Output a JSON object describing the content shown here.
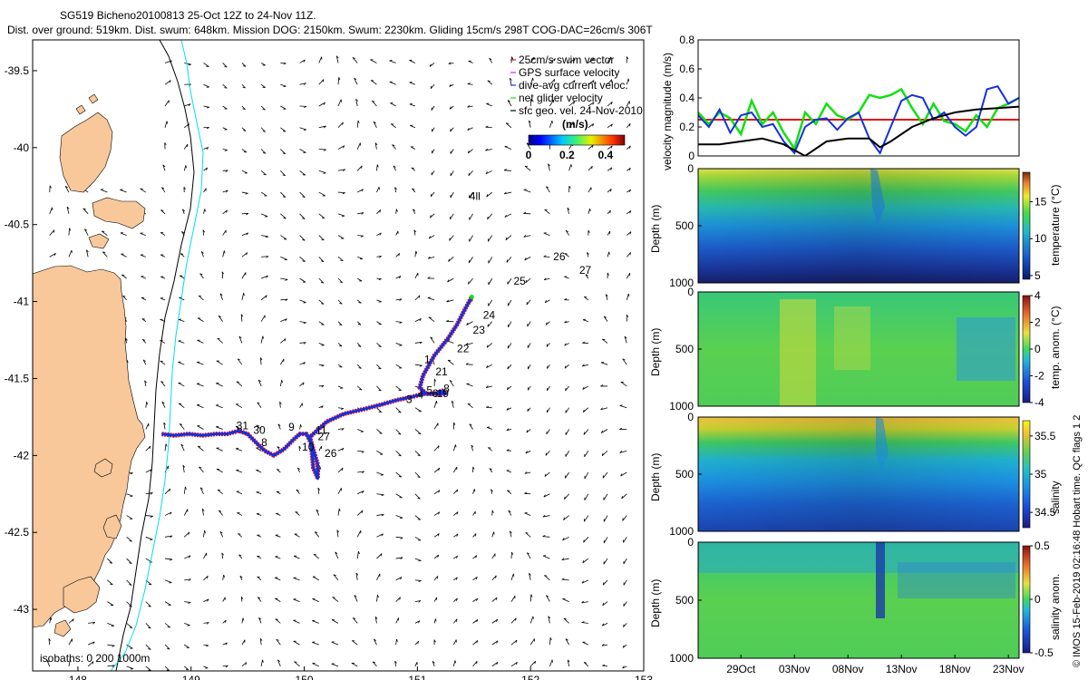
{
  "title": {
    "line1": "SG519 Bicheno20100813 25-Oct 12Z to 24-Nov 11Z.",
    "line2": "Dist. over ground: 519km. Dist. swum: 648km. Mission DOG: 2150km. Swum: 2230km. Gliding 15cm/s 298T COG-DAC=26cm/s 306T"
  },
  "side_note": "© IMOS 15-Feb-2019 02:16:48 Hobart time. QC flags 1  2",
  "colors": {
    "land": "#f8c89a",
    "track_red": "#e01010",
    "track_blue": "#1530dd",
    "cyan_isobath": "#00e0f0",
    "green": "#10e010",
    "black": "#000000"
  },
  "chart_data": [
    {
      "id": "map",
      "type": "scatter",
      "xlim": [
        147.6,
        153
      ],
      "ylim": [
        -43.4,
        -39.3
      ],
      "xticks": [
        148,
        149,
        150,
        151,
        152,
        153
      ],
      "xtick_labels": [
        "148",
        "149",
        "150",
        "151",
        "152",
        "153"
      ],
      "yticks": [
        -39.5,
        -40,
        -40.5,
        -41,
        -41.5,
        -42,
        -42.5,
        -43
      ],
      "ytick_labels": [
        "-39.5",
        "-40",
        "-40.5",
        "-41",
        "-41.5",
        "-42",
        "-42.5",
        "-43"
      ],
      "isobaths_label": "isobaths: 0    200   1000m",
      "legend": [
        {
          "label": "25cm/s swim vector",
          "color": "#e01010",
          "marker": "arrow"
        },
        {
          "label": "GPS surface velocity",
          "color": "#e020e0",
          "marker": "line"
        },
        {
          "label": "dive-avg current veloc.",
          "color": "#1530dd",
          "marker": "arrow"
        },
        {
          "label": "net glider velocity",
          "color": "#10e010",
          "marker": "line"
        },
        {
          "label": "sfc geo. vel. 24-Nov-2010",
          "color": "#000000",
          "marker": "arrow"
        }
      ],
      "colorbar": {
        "label": "(m/s)",
        "ticks": [
          0,
          0.2,
          0.4
        ],
        "tick_labels": [
          "0",
          "0.2",
          "0.4"
        ],
        "range": [
          0,
          0.5
        ]
      },
      "track": [
        [
          148.74,
          -41.86
        ],
        [
          148.85,
          -41.87
        ],
        [
          148.98,
          -41.86
        ],
        [
          149.1,
          -41.87
        ],
        [
          149.22,
          -41.86
        ],
        [
          149.32,
          -41.86
        ],
        [
          149.42,
          -41.84
        ],
        [
          149.5,
          -41.86
        ],
        [
          149.58,
          -41.92
        ],
        [
          149.65,
          -41.97
        ],
        [
          149.73,
          -42.0
        ],
        [
          149.82,
          -41.96
        ],
        [
          149.9,
          -41.9
        ],
        [
          149.96,
          -41.86
        ],
        [
          150.02,
          -41.86
        ],
        [
          150.06,
          -41.92
        ],
        [
          150.07,
          -42.0
        ],
        [
          150.08,
          -42.08
        ],
        [
          150.12,
          -42.15
        ],
        [
          150.12,
          -42.06
        ],
        [
          150.08,
          -41.96
        ],
        [
          150.05,
          -41.88
        ],
        [
          150.2,
          -41.78
        ],
        [
          150.35,
          -41.73
        ],
        [
          150.52,
          -41.7
        ],
        [
          150.68,
          -41.67
        ],
        [
          150.82,
          -41.64
        ],
        [
          150.95,
          -41.62
        ],
        [
          151.05,
          -41.6
        ],
        [
          151.15,
          -41.6
        ],
        [
          151.22,
          -41.58
        ],
        [
          151.25,
          -41.6
        ],
        [
          151.08,
          -41.6
        ],
        [
          151.02,
          -41.56
        ],
        [
          151.05,
          -41.48
        ],
        [
          151.15,
          -41.35
        ],
        [
          151.27,
          -41.24
        ],
        [
          151.35,
          -41.15
        ],
        [
          151.42,
          -41.05
        ],
        [
          151.48,
          -40.97
        ]
      ],
      "track_labels": [
        {
          "text": "31",
          "lon": 149.4,
          "lat": -41.83
        },
        {
          "text": "30",
          "lon": 149.55,
          "lat": -41.86
        },
        {
          "text": "8",
          "lon": 149.62,
          "lat": -41.94
        },
        {
          "text": "9",
          "lon": 149.86,
          "lat": -41.84
        },
        {
          "text": "11",
          "lon": 150.1,
          "lat": -41.86
        },
        {
          "text": "27",
          "lon": 150.12,
          "lat": -41.9
        },
        {
          "text": "10",
          "lon": 149.98,
          "lat": -41.97
        },
        {
          "text": "26",
          "lon": 150.18,
          "lat": -42.01
        },
        {
          "text": "3",
          "lon": 150.9,
          "lat": -41.66
        },
        {
          "text": "4",
          "lon": 151.0,
          "lat": -41.63
        },
        {
          "text": "5",
          "lon": 151.08,
          "lat": -41.6
        },
        {
          "text": "6",
          "lon": 151.13,
          "lat": -41.62
        },
        {
          "text": "19",
          "lon": 151.17,
          "lat": -41.62
        },
        {
          "text": "8",
          "lon": 151.23,
          "lat": -41.59
        },
        {
          "text": "21",
          "lon": 151.16,
          "lat": -41.48
        },
        {
          "text": "1",
          "lon": 151.06,
          "lat": -41.4
        },
        {
          "text": "22",
          "lon": 151.35,
          "lat": -41.33
        },
        {
          "text": "23",
          "lon": 151.49,
          "lat": -41.21
        },
        {
          "text": "24",
          "lon": 151.58,
          "lat": -41.11
        },
        {
          "text": "25",
          "lon": 151.85,
          "lat": -40.89
        },
        {
          "text": "26",
          "lon": 152.2,
          "lat": -40.73
        },
        {
          "text": "27",
          "lon": 152.43,
          "lat": -40.82
        },
        {
          "text": "4ll",
          "lon": 151.46,
          "lat": -40.34
        }
      ]
    },
    {
      "id": "velocity",
      "type": "line",
      "ylabel": "velocity magnitude (m/s)",
      "xlim": [
        0,
        30
      ],
      "ylim": [
        0,
        0.8
      ],
      "yticks": [
        0,
        0.2,
        0.4,
        0.6,
        0.8
      ],
      "ytick_labels": [
        "0",
        "0.2",
        "0.4",
        "0.6",
        "0.8"
      ],
      "series": [
        {
          "name": "swim 25cm/s",
          "color": "#e01010",
          "x": [
            0,
            30
          ],
          "values": [
            0.25,
            0.25
          ]
        },
        {
          "name": "net glider velocity",
          "color": "#10e010",
          "x": [
            0,
            1,
            2,
            3,
            4,
            5,
            6,
            7,
            8,
            9,
            10,
            11,
            12,
            13,
            14,
            15,
            16,
            17,
            18,
            19,
            20,
            21,
            22,
            23,
            24,
            25,
            26,
            27,
            28,
            29,
            30
          ],
          "values": [
            0.3,
            0.22,
            0.3,
            0.26,
            0.15,
            0.38,
            0.22,
            0.3,
            0.16,
            0.05,
            0.3,
            0.22,
            0.36,
            0.28,
            0.25,
            0.3,
            0.42,
            0.4,
            0.42,
            0.46,
            0.33,
            0.22,
            0.36,
            0.24,
            0.22,
            0.17,
            0.28,
            0.2,
            0.33,
            0.36,
            0.4
          ]
        },
        {
          "name": "dive-avg current",
          "color": "#1530dd",
          "x": [
            0,
            1,
            2,
            3,
            4,
            5,
            6,
            7,
            8,
            9,
            10,
            11,
            12,
            13,
            14,
            15,
            16,
            17,
            18,
            19,
            20,
            21,
            22,
            23,
            24,
            25,
            26,
            27,
            28,
            29,
            30
          ],
          "values": [
            0.28,
            0.2,
            0.32,
            0.16,
            0.28,
            0.3,
            0.2,
            0.22,
            0.1,
            0.02,
            0.2,
            0.25,
            0.26,
            0.18,
            0.26,
            0.3,
            0.12,
            0.02,
            0.2,
            0.38,
            0.42,
            0.4,
            0.25,
            0.3,
            0.2,
            0.14,
            0.2,
            0.46,
            0.48,
            0.36,
            0.4
          ]
        },
        {
          "name": "sfc geo. vel.",
          "color": "#000000",
          "x": [
            0,
            2,
            4,
            6,
            8,
            10,
            12,
            14,
            16,
            17,
            18,
            20,
            22,
            24,
            26,
            28,
            30
          ],
          "values": [
            0.08,
            0.08,
            0.1,
            0.12,
            0.08,
            0.0,
            0.1,
            0.12,
            0.12,
            0.06,
            0.1,
            0.2,
            0.26,
            0.3,
            0.32,
            0.33,
            0.34
          ]
        }
      ]
    },
    {
      "id": "temperature",
      "type": "heatmap",
      "ylabel": "Depth (m)",
      "cbar_label": "temperature (°C)",
      "depth_ticks": [
        0,
        500,
        1000
      ],
      "depth_tick_labels": [
        "0",
        "500",
        "1000"
      ],
      "cbar_range": [
        4.5,
        19
      ],
      "cbar_ticks": [
        5,
        10,
        15
      ],
      "cbar_tick_labels": [
        "5",
        "10",
        "15"
      ],
      "profile_depths": [
        0,
        100,
        150,
        200,
        300,
        400,
        500,
        600,
        700,
        800,
        900,
        1000
      ],
      "profile_values": [
        15.5,
        14.5,
        14,
        13,
        11.5,
        10,
        8.5,
        7.2,
        6.5,
        5.8,
        5.2,
        4.8
      ]
    },
    {
      "id": "temp_anomaly",
      "type": "heatmap",
      "ylabel": "Depth (m)",
      "cbar_label": "temp. anom. (°C)",
      "depth_ticks": [
        0,
        500,
        1000
      ],
      "depth_tick_labels": [
        "0",
        "500",
        "1000"
      ],
      "cbar_range": [
        -4,
        4
      ],
      "cbar_ticks": [
        -4,
        -2,
        0,
        2,
        4
      ],
      "cbar_tick_labels": [
        "-4",
        "-2",
        "0",
        "2",
        "4"
      ],
      "profile_depths": [
        0,
        500,
        1000
      ],
      "profile_values": [
        0.5,
        0.3,
        0.2
      ]
    },
    {
      "id": "salinity",
      "type": "heatmap",
      "ylabel": "Depth (m)",
      "cbar_label": "salinity",
      "depth_ticks": [
        0,
        500,
        1000
      ],
      "depth_tick_labels": [
        "0",
        "500",
        "1000"
      ],
      "cbar_range": [
        34.3,
        35.7
      ],
      "cbar_ticks": [
        34.5,
        35,
        35.5
      ],
      "cbar_tick_labels": [
        "34.5",
        "35",
        "35.5"
      ],
      "profile_depths": [
        0,
        150,
        250,
        400,
        550,
        700,
        850,
        1000
      ],
      "profile_values": [
        35.45,
        35.35,
        35.15,
        34.98,
        34.82,
        34.68,
        34.58,
        34.5
      ]
    },
    {
      "id": "sal_anomaly",
      "type": "heatmap",
      "ylabel": "Depth (m)",
      "cbar_label": "salinity anom.",
      "depth_ticks": [
        0,
        500,
        1000
      ],
      "depth_tick_labels": [
        "0",
        "500",
        "1000"
      ],
      "cbar_range": [
        -0.5,
        0.5
      ],
      "cbar_ticks": [
        -0.5,
        0,
        0.5
      ],
      "cbar_tick_labels": [
        "-0.5",
        "0",
        "0.5"
      ],
      "profile_depths": [
        0,
        500,
        1000
      ],
      "profile_values": [
        0.05,
        0.1,
        0.08
      ],
      "x_ticks": [
        4,
        9,
        14,
        19,
        24,
        29
      ],
      "x_tick_labels": [
        "29Oct",
        "03Nov",
        "08Nov",
        "13Nov",
        "18Nov",
        "23Nov"
      ]
    }
  ]
}
